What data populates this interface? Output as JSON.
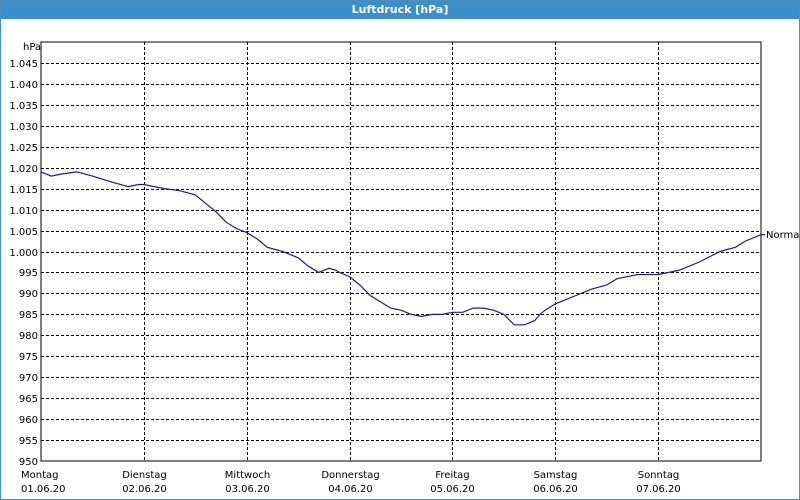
{
  "window": {
    "title": "Luftdruck [hPa]"
  },
  "colors": {
    "line": "#1a1aa0",
    "grid": "#000000",
    "titlebar": "#3c8fc8"
  },
  "chart_data": {
    "type": "line",
    "title": "Luftdruck [hPa]",
    "ylabel": "hPa",
    "ylim": [
      950,
      1050
    ],
    "yticks": [
      950,
      955,
      960,
      965,
      970,
      975,
      980,
      985,
      990,
      995,
      1000,
      1005,
      1010,
      1015,
      1020,
      1025,
      1030,
      1035,
      1040,
      1045
    ],
    "ytick_labels": [
      "950",
      "955",
      "960",
      "965",
      "970",
      "975",
      "980",
      "985",
      "990",
      "995",
      "1.000",
      "1.005",
      "1.010",
      "1.015",
      "1.020",
      "1.025",
      "1.030",
      "1.035",
      "1.040",
      "1.045"
    ],
    "xlim": [
      0,
      7
    ],
    "xticks": [
      {
        "day": "Montag",
        "date": "01.06.20",
        "x": 0
      },
      {
        "day": "Dienstag",
        "date": "02.06.20",
        "x": 1
      },
      {
        "day": "Mittwoch",
        "date": "03.06.20",
        "x": 2
      },
      {
        "day": "Donnerstag",
        "date": "04.06.20",
        "x": 3
      },
      {
        "day": "Freitag",
        "date": "05.06.20",
        "x": 4
      },
      {
        "day": "Samstag",
        "date": "06.06.20",
        "x": 5
      },
      {
        "day": "Sonntag",
        "date": "07.06.20",
        "x": 6
      }
    ],
    "grid": true,
    "series": [
      {
        "name": "Normal",
        "x": [
          0,
          0.1,
          0.2,
          0.35,
          0.5,
          0.7,
          0.85,
          0.95,
          1.0,
          1.1,
          1.2,
          1.35,
          1.5,
          1.6,
          1.7,
          1.8,
          1.9,
          2.0,
          2.1,
          2.2,
          2.35,
          2.5,
          2.6,
          2.7,
          2.8,
          2.87,
          2.9,
          3.0,
          3.1,
          3.2,
          3.3,
          3.4,
          3.5,
          3.6,
          3.7,
          3.8,
          3.9,
          4.0,
          4.1,
          4.2,
          4.3,
          4.4,
          4.5,
          4.6,
          4.7,
          4.8,
          4.85,
          4.9,
          5.0,
          5.1,
          5.2,
          5.35,
          5.5,
          5.6,
          5.8,
          6.0,
          6.2,
          6.4,
          6.6,
          6.75,
          6.85,
          6.95,
          7.0
        ],
        "y": [
          1019,
          1018,
          1018.5,
          1019,
          1018,
          1016.5,
          1015.5,
          1016,
          1016,
          1015.5,
          1015,
          1014.5,
          1013.5,
          1011.5,
          1009.5,
          1007,
          1005.5,
          1004.5,
          1003,
          1001,
          1000,
          998.5,
          996.5,
          995,
          996,
          995.5,
          995,
          994,
          992,
          989.5,
          988,
          986.5,
          986,
          985,
          984.5,
          985,
          985,
          985.5,
          985.5,
          986.5,
          986.5,
          986,
          985,
          982.5,
          982.5,
          983.5,
          985,
          986,
          987.5,
          988.5,
          989.5,
          991,
          992,
          993.5,
          994.5,
          994.5,
          995.5,
          997.5,
          1000,
          1001,
          1002.5,
          1003.5,
          1004
        ]
      }
    ]
  }
}
